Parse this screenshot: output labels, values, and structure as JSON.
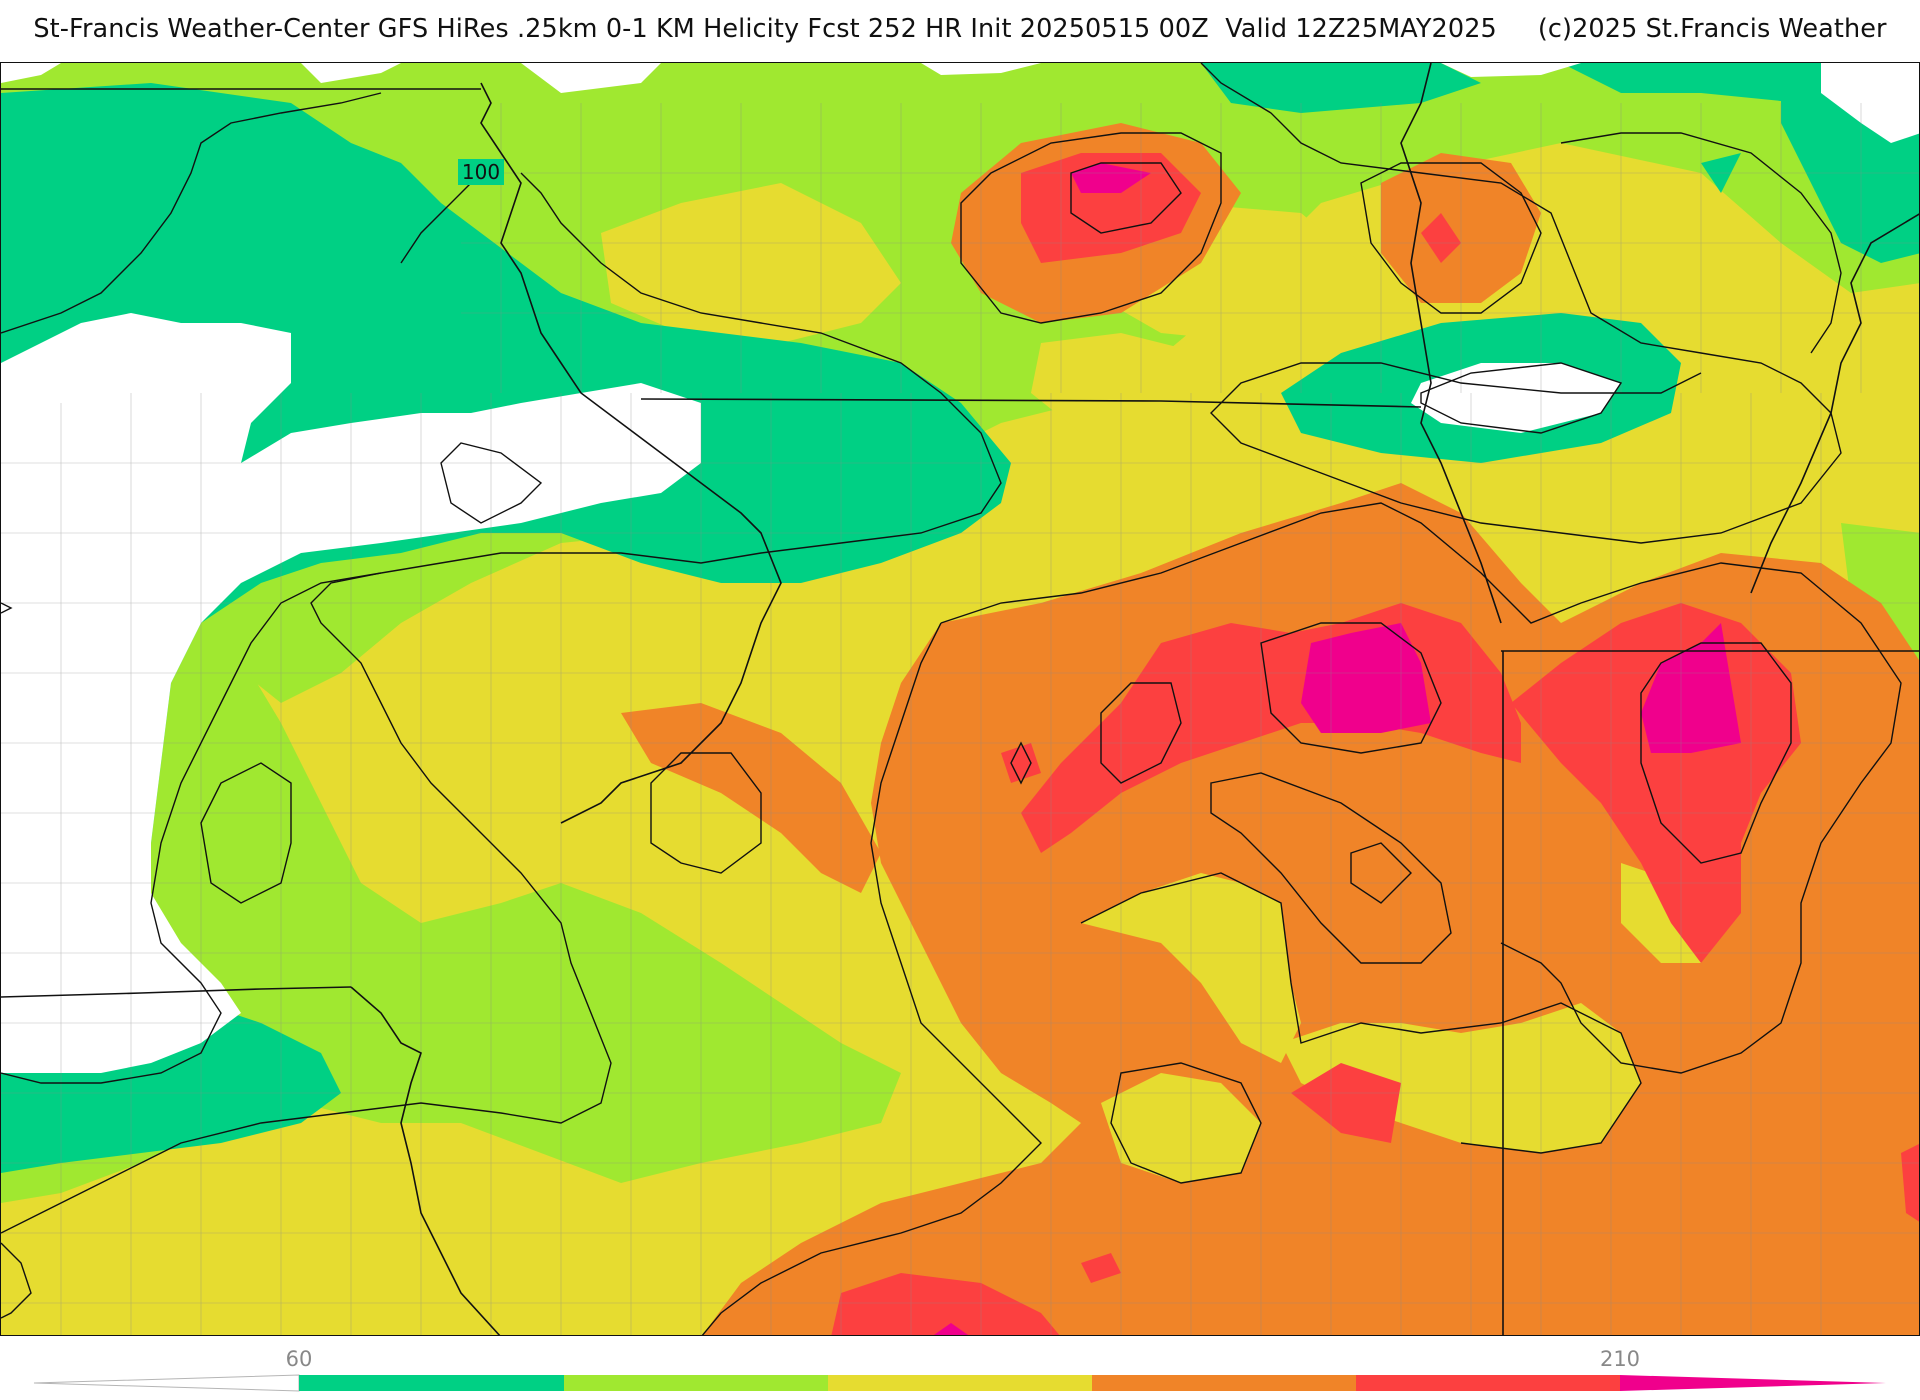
{
  "title": "St-Francis Weather-Center GFS HiRes .25km 0-1 KM Helicity Fcst 252 HR Init 20250515 00Z  Valid 12Z25MAY2025     (c)2025 St.Francis Weather",
  "contour_label": "100",
  "colorbar": {
    "ticks": [
      {
        "label": "60",
        "value": 60
      },
      {
        "label": "210",
        "value": 210
      }
    ],
    "band_colors": [
      "#00d084",
      "#a0e830",
      "#e6dc30",
      "#f08428",
      "#fc4040",
      "#f0008c"
    ]
  },
  "colors": {
    "below": "#ffffff",
    "band_60_90": "#00d084",
    "band_90_120": "#a0e830",
    "band_120_150": "#e6dc30",
    "band_150_180": "#f08428",
    "band_180_210": "#fc4040",
    "band_210_plus": "#f0008c"
  }
}
